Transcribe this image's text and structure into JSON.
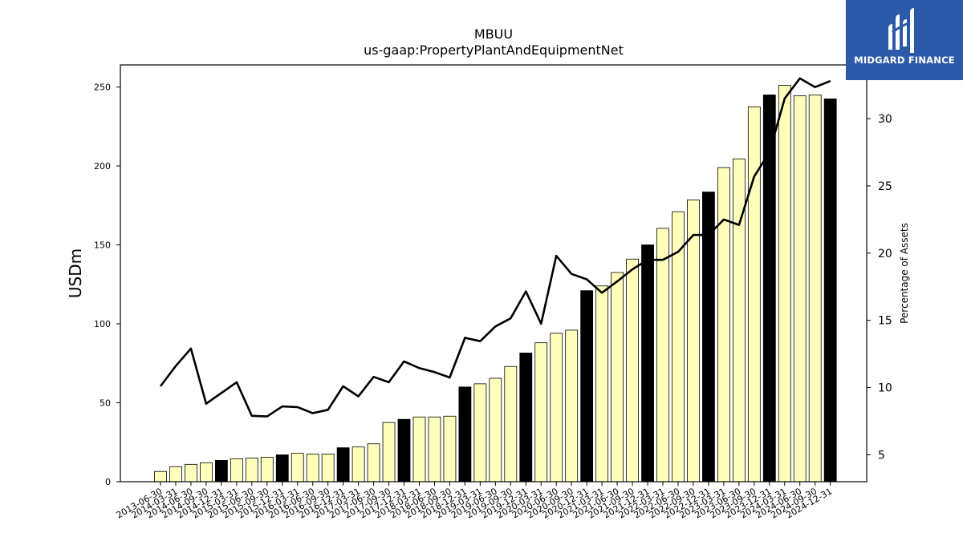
{
  "brand": {
    "name": "MIDGARD FINANCE"
  },
  "chart_data": {
    "type": "bar",
    "title": "MBUU",
    "subtitle": "us-gaap:PropertyPlantAndEquipmentNet",
    "ylabel": "USDm",
    "y2label": "Percentage of Assets",
    "ylim": [
      0,
      264
    ],
    "y2lim": [
      3,
      34
    ],
    "yticks": [
      0,
      50,
      100,
      150,
      200,
      250
    ],
    "y2ticks": [
      5,
      10,
      15,
      20,
      25,
      30
    ],
    "colors": {
      "bar_default": "#ffffbb",
      "bar_fiscal_year_end": "#000000",
      "line": "#000000"
    },
    "categories": [
      "2013-06-30",
      "2014-03-31",
      "2014-06-30",
      "2014-09-30",
      "2014-12-31",
      "2015-03-31",
      "2015-06-30",
      "2015-09-30",
      "2015-12-31",
      "2016-03-31",
      "2016-06-30",
      "2016-09-30",
      "2016-12-31",
      "2017-03-31",
      "2017-06-30",
      "2017-09-30",
      "2017-12-31",
      "2018-03-31",
      "2018-06-30",
      "2018-09-30",
      "2018-12-31",
      "2019-03-31",
      "2019-06-30",
      "2019-09-30",
      "2019-12-31",
      "2020-03-31",
      "2020-06-30",
      "2020-09-30",
      "2020-12-31",
      "2021-03-31",
      "2021-06-30",
      "2021-09-30",
      "2021-12-31",
      "2022-03-31",
      "2022-06-30",
      "2022-09-30",
      "2022-12-31",
      "2023-03-31",
      "2023-06-30",
      "2023-09-30",
      "2023-12-31",
      "2024-03-31",
      "2024-06-30",
      "2024-09-30",
      "2024-12-31"
    ],
    "highlight": [
      false,
      false,
      false,
      false,
      true,
      false,
      false,
      false,
      true,
      false,
      false,
      false,
      true,
      false,
      false,
      false,
      true,
      false,
      false,
      false,
      true,
      false,
      false,
      false,
      true,
      false,
      false,
      false,
      true,
      false,
      false,
      false,
      true,
      false,
      false,
      false,
      true,
      false,
      false,
      false,
      true,
      false,
      false,
      false,
      true
    ],
    "series": [
      {
        "name": "",
        "type": "bar",
        "axis": "left",
        "values": [
          6.5,
          9.5,
          11,
          12,
          13.5,
          14.5,
          15,
          15.5,
          17,
          18,
          17.5,
          17.5,
          21.5,
          22,
          24,
          37.5,
          39.5,
          41,
          41,
          41.5,
          60,
          62,
          65.5,
          73,
          81.5,
          88,
          94,
          96,
          121,
          124,
          132.5,
          141,
          150,
          160.5,
          171,
          178.5,
          183.5,
          199,
          204.5,
          237.5,
          245,
          251,
          244.5,
          245,
          242.5
        ]
      },
      {
        "name": "",
        "type": "line",
        "axis": "right",
        "values": [
          10.1,
          11.6,
          12.9,
          8.8,
          9.6,
          10.4,
          7.9,
          7.85,
          8.6,
          8.55,
          8.1,
          8.35,
          10.1,
          9.35,
          10.8,
          10.4,
          11.95,
          11.45,
          11.15,
          10.75,
          13.7,
          13.45,
          14.55,
          15.15,
          17.15,
          14.75,
          19.8,
          18.45,
          18.05,
          17.05,
          17.9,
          18.8,
          19.5,
          19.5,
          20.1,
          21.35,
          21.35,
          22.5,
          22.1,
          25.7,
          27.5,
          31.5,
          33.0,
          32.35,
          32.8
        ]
      }
    ]
  }
}
